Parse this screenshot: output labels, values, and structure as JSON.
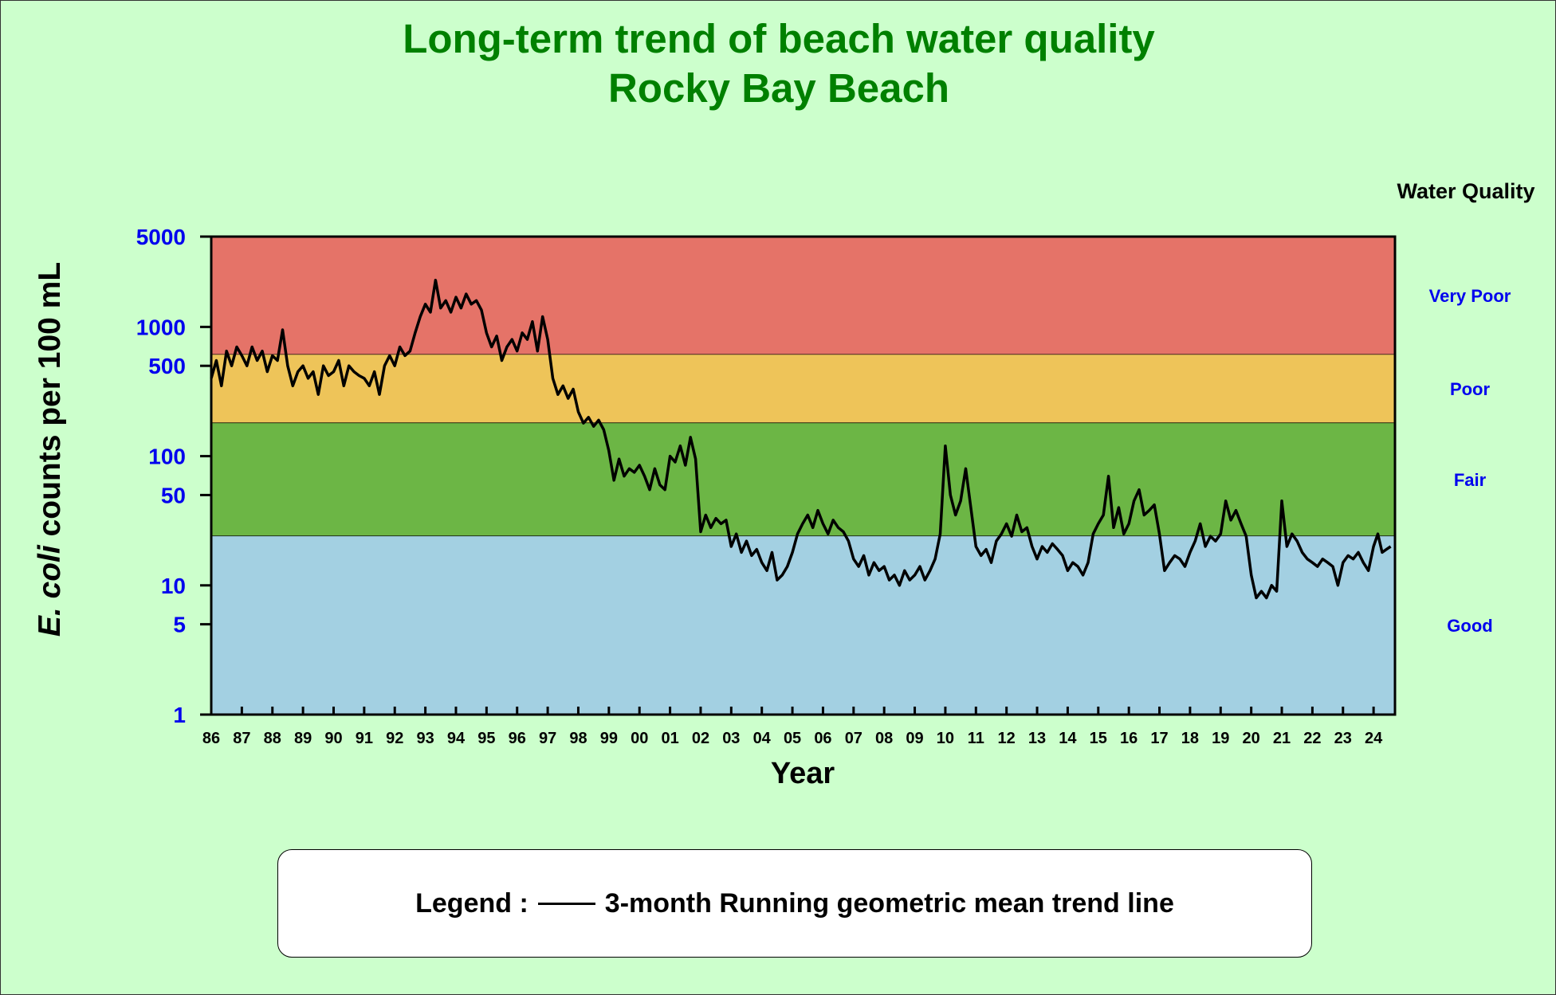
{
  "chart_data": {
    "type": "line",
    "title": "Long-term trend of beach water quality",
    "subtitle": "Rocky Bay Beach",
    "ylabel_italic": "E. coli",
    "ylabel_rest": " counts per 100 mL",
    "xlabel": "Year",
    "y_scale": "log",
    "ylim": [
      1,
      5000
    ],
    "xlim": [
      1986,
      2024.7
    ],
    "y_ticks": [
      1,
      5,
      10,
      50,
      100,
      500,
      1000,
      5000
    ],
    "x_tick_labels": [
      "86",
      "87",
      "88",
      "89",
      "90",
      "91",
      "92",
      "93",
      "94",
      "95",
      "96",
      "97",
      "98",
      "99",
      "00",
      "01",
      "02",
      "03",
      "04",
      "05",
      "06",
      "07",
      "08",
      "09",
      "10",
      "11",
      "12",
      "13",
      "14",
      "15",
      "16",
      "17",
      "18",
      "19",
      "20",
      "21",
      "22",
      "23",
      "24"
    ],
    "grid": false,
    "band_title": "Water Quality",
    "bands": [
      {
        "label": "Very Poor",
        "from": 610,
        "to": 5000,
        "color": "#e57368"
      },
      {
        "label": "Poor",
        "from": 180,
        "to": 610,
        "color": "#eec459"
      },
      {
        "label": "Fair",
        "from": 24,
        "to": 180,
        "color": "#6cb645"
      },
      {
        "label": "Good",
        "from": 1,
        "to": 24,
        "color": "#a3d0e2"
      }
    ],
    "legend": {
      "prefix": "Legend :",
      "text": "3-month Running geometric mean trend line"
    },
    "series": [
      {
        "name": "3-month Running geometric mean trend line",
        "color": "#000000",
        "by_year": [
          {
            "year": 1986,
            "values": [
              400,
              550,
              350,
              650,
              500,
              700
            ]
          },
          {
            "year": 1987,
            "values": [
              600,
              500,
              700,
              550,
              650,
              450
            ]
          },
          {
            "year": 1988,
            "values": [
              600,
              550,
              950,
              500,
              350,
              450
            ]
          },
          {
            "year": 1989,
            "values": [
              500,
              400,
              450,
              300,
              500,
              420
            ]
          },
          {
            "year": 1990,
            "values": [
              450,
              550,
              350,
              500,
              450,
              420
            ]
          },
          {
            "year": 1991,
            "values": [
              400,
              350,
              450,
              300,
              500,
              600
            ]
          },
          {
            "year": 1992,
            "values": [
              500,
              700,
              600,
              650,
              900,
              1200
            ]
          },
          {
            "year": 1993,
            "values": [
              1500,
              1300,
              2300,
              1400,
              1600,
              1300
            ]
          },
          {
            "year": 1994,
            "values": [
              1700,
              1400,
              1800,
              1500,
              1600,
              1350
            ]
          },
          {
            "year": 1995,
            "values": [
              900,
              700,
              850,
              550,
              700,
              800
            ]
          },
          {
            "year": 1996,
            "values": [
              650,
              900,
              800,
              1100,
              650,
              1200
            ]
          },
          {
            "year": 1997,
            "values": [
              800,
              400,
              300,
              350,
              280,
              330
            ]
          },
          {
            "year": 1998,
            "values": [
              220,
              180,
              200,
              170,
              190,
              160
            ]
          },
          {
            "year": 1999,
            "values": [
              110,
              65,
              95,
              70,
              80,
              75
            ]
          },
          {
            "year": 2000,
            "values": [
              85,
              70,
              55,
              80,
              60,
              55
            ]
          },
          {
            "year": 2001,
            "values": [
              100,
              90,
              120,
              85,
              140,
              95
            ]
          },
          {
            "year": 2002,
            "values": [
              26,
              35,
              28,
              33,
              30,
              32
            ]
          },
          {
            "year": 2003,
            "values": [
              20,
              25,
              18,
              22,
              17,
              19
            ]
          },
          {
            "year": 2004,
            "values": [
              15,
              13,
              18,
              11,
              12,
              14
            ]
          },
          {
            "year": 2005,
            "values": [
              18,
              25,
              30,
              35,
              28,
              38
            ]
          },
          {
            "year": 2006,
            "values": [
              30,
              25,
              32,
              28,
              26,
              22
            ]
          },
          {
            "year": 2007,
            "values": [
              16,
              14,
              17,
              12,
              15,
              13
            ]
          },
          {
            "year": 2008,
            "values": [
              14,
              11,
              12,
              10,
              13,
              11
            ]
          },
          {
            "year": 2009,
            "values": [
              12,
              14,
              11,
              13,
              16,
              25
            ]
          },
          {
            "year": 2010,
            "values": [
              120,
              50,
              35,
              45,
              80,
              40
            ]
          },
          {
            "year": 2011,
            "values": [
              20,
              17,
              19,
              15,
              22,
              25
            ]
          },
          {
            "year": 2012,
            "values": [
              30,
              24,
              35,
              26,
              28,
              20
            ]
          },
          {
            "year": 2013,
            "values": [
              16,
              20,
              18,
              21,
              19,
              17
            ]
          },
          {
            "year": 2014,
            "values": [
              13,
              15,
              14,
              12,
              15,
              25
            ]
          },
          {
            "year": 2015,
            "values": [
              30,
              35,
              70,
              28,
              40,
              25
            ]
          },
          {
            "year": 2016,
            "values": [
              30,
              45,
              55,
              35,
              38,
              42
            ]
          },
          {
            "year": 2017,
            "values": [
              25,
              13,
              15,
              17,
              16,
              14
            ]
          },
          {
            "year": 2018,
            "values": [
              18,
              22,
              30,
              20,
              24,
              22
            ]
          },
          {
            "year": 2019,
            "values": [
              25,
              45,
              32,
              38,
              30,
              24
            ]
          },
          {
            "year": 2020,
            "values": [
              12,
              8,
              9,
              8,
              10,
              9
            ]
          },
          {
            "year": 2021,
            "values": [
              45,
              20,
              25,
              22,
              18,
              16
            ]
          },
          {
            "year": 2022,
            "values": [
              15,
              14,
              16,
              15,
              14,
              10
            ]
          },
          {
            "year": 2023,
            "values": [
              15,
              17,
              16,
              18,
              15,
              13
            ]
          },
          {
            "year": 2024,
            "values": [
              20,
              25,
              18,
              19,
              20
            ]
          }
        ]
      }
    ]
  }
}
